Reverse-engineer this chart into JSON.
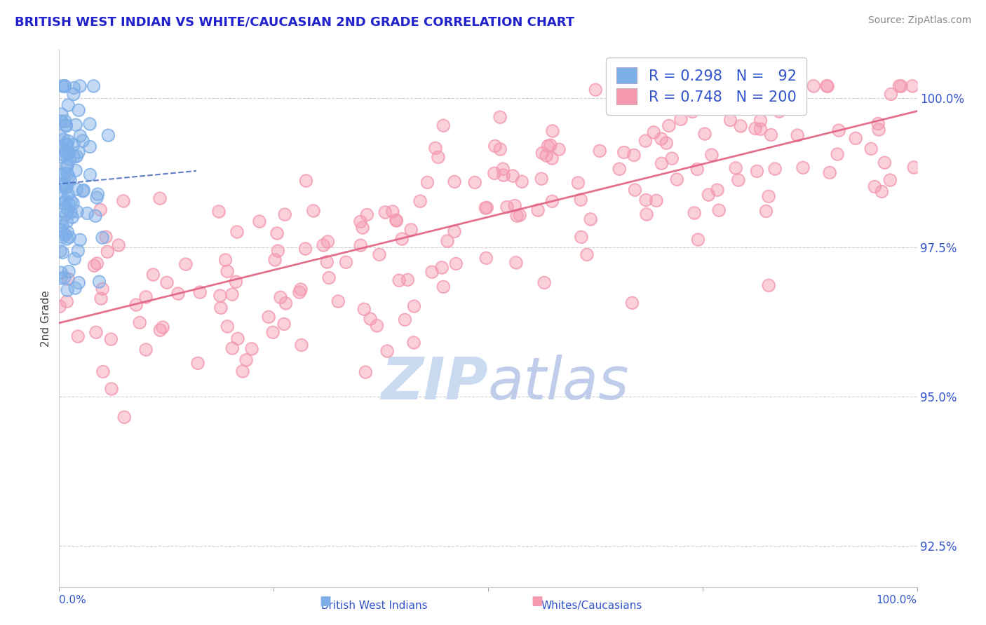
{
  "title": "BRITISH WEST INDIAN VS WHITE/CAUCASIAN 2ND GRADE CORRELATION CHART",
  "source": "Source: ZipAtlas.com",
  "ylabel": "2nd Grade",
  "ytick_labels": [
    "92.5%",
    "95.0%",
    "97.5%",
    "100.0%"
  ],
  "ytick_values": [
    92.5,
    95.0,
    97.5,
    100.0
  ],
  "xlim": [
    0.0,
    100.0
  ],
  "ylim": [
    91.8,
    100.8
  ],
  "legend_r1": "R = 0.298",
  "legend_n1": "N =  92",
  "legend_r2": "R = 0.748",
  "legend_n2": "N = 200",
  "blue_color": "#7daee8",
  "pink_color": "#f499b0",
  "blue_line_color": "#4466bb",
  "pink_line_color": "#e06080",
  "title_color": "#2222cc",
  "axis_label_color": "#3355cc",
  "watermark_color": "#c5d8f0",
  "background_color": "#ffffff",
  "blue_n": 92,
  "pink_n": 200,
  "blue_seed": 7,
  "pink_seed": 55
}
